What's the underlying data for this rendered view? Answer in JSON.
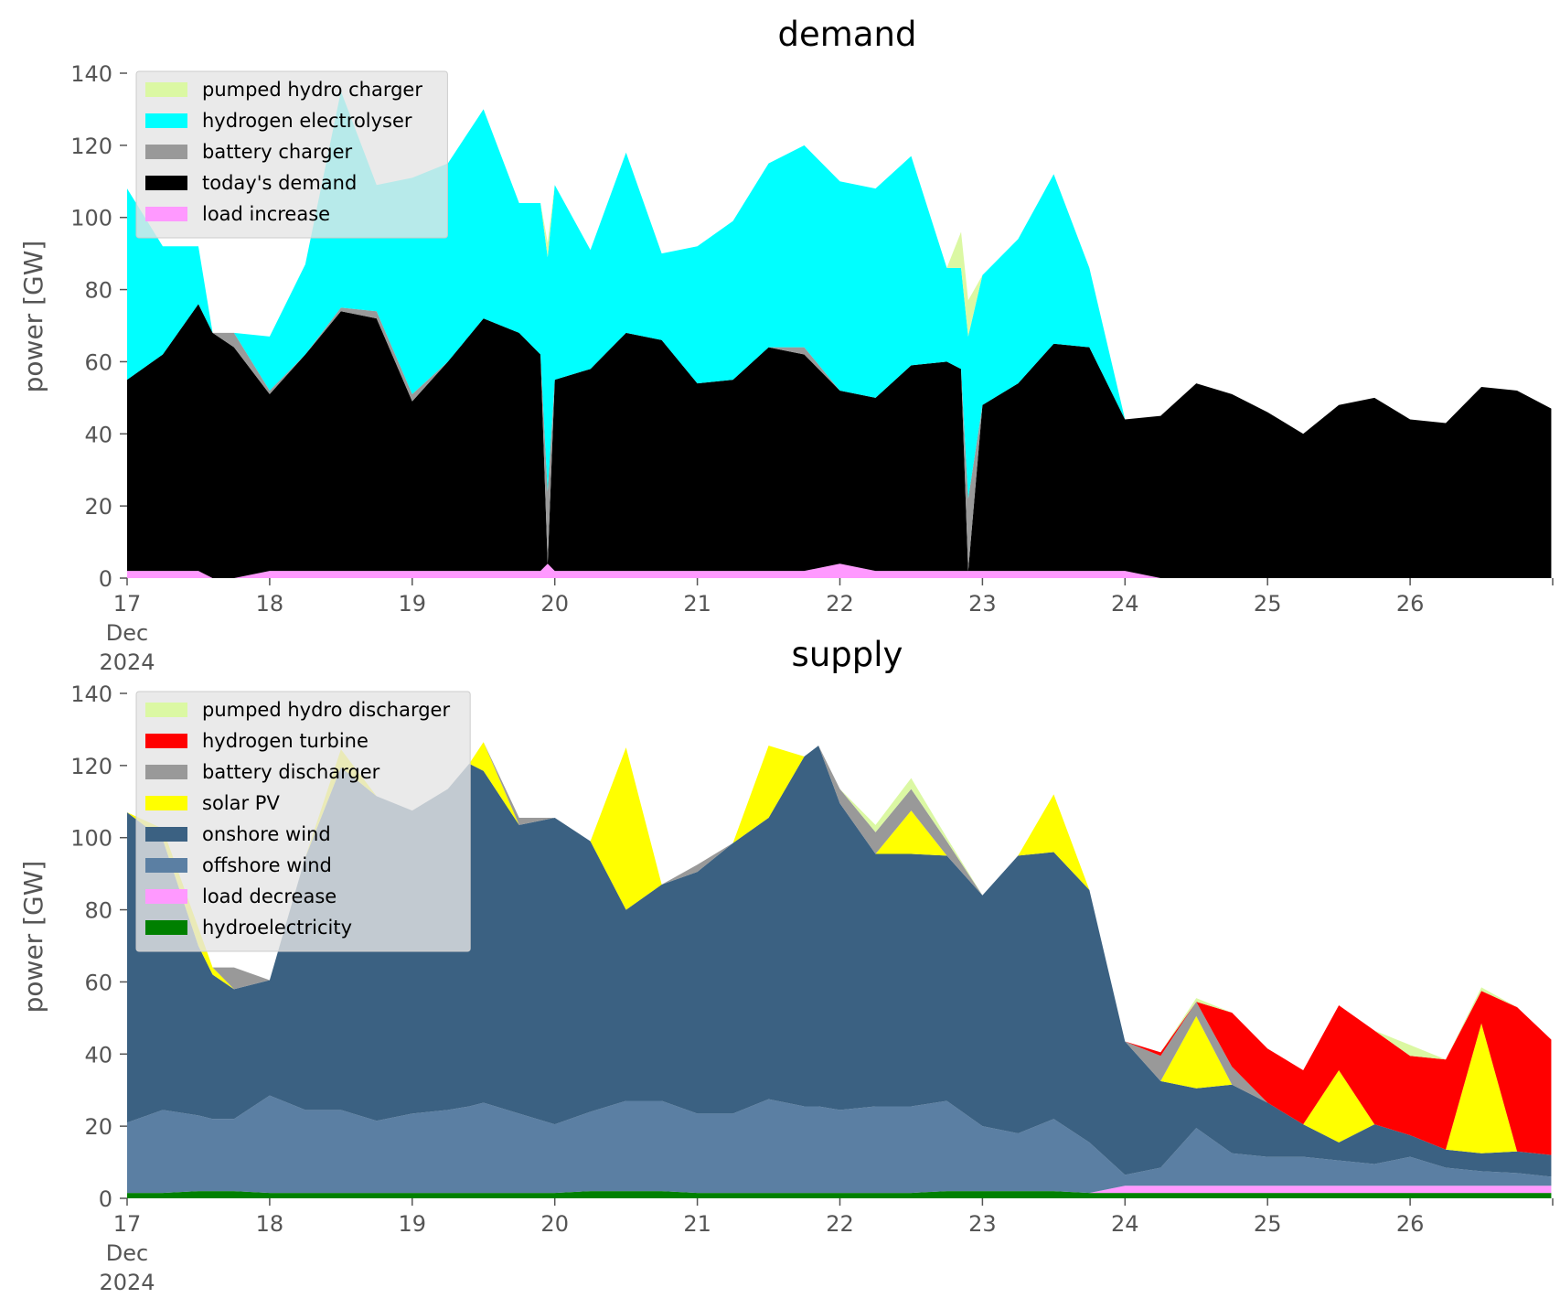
{
  "chart_data": [
    {
      "type": "area",
      "stacked": true,
      "title": "demand",
      "ylabel": "power [GW]",
      "xlabel": "",
      "ylim": [
        0,
        140
      ],
      "yticks": [
        0,
        20,
        40,
        60,
        80,
        100,
        120,
        140
      ],
      "xlim_days": [
        17,
        27
      ],
      "xticks": [
        {
          "day": 17,
          "labels": [
            "17",
            "Dec",
            "2024"
          ]
        },
        {
          "day": 18,
          "labels": [
            "18"
          ]
        },
        {
          "day": 19,
          "labels": [
            "19"
          ]
        },
        {
          "day": 20,
          "labels": [
            "20"
          ]
        },
        {
          "day": 21,
          "labels": [
            "21"
          ]
        },
        {
          "day": 22,
          "labels": [
            "22"
          ]
        },
        {
          "day": 23,
          "labels": [
            "23"
          ]
        },
        {
          "day": 24,
          "labels": [
            "24"
          ]
        },
        {
          "day": 25,
          "labels": [
            "25"
          ]
        },
        {
          "day": 26,
          "labels": [
            "26"
          ]
        }
      ],
      "grid": false,
      "legend_position": "top-left",
      "legend": [
        "pumped hydro charger",
        "hydrogen electrolyser",
        "battery charger",
        "today's demand",
        "load increase"
      ],
      "x_day": [
        17.0,
        17.25,
        17.5,
        17.6,
        17.75,
        18.0,
        18.25,
        18.5,
        18.75,
        19.0,
        19.25,
        19.5,
        19.75,
        19.9,
        19.95,
        20.0,
        20.25,
        20.5,
        20.75,
        21.0,
        21.25,
        21.5,
        21.75,
        22.0,
        22.25,
        22.5,
        22.75,
        22.85,
        22.9,
        23.0,
        23.25,
        23.5,
        23.75,
        24.0,
        24.25,
        24.5,
        24.75,
        25.0,
        25.25,
        25.5,
        25.75,
        26.0,
        26.25,
        26.5,
        26.75,
        26.99
      ],
      "series": [
        {
          "name": "load increase",
          "color": "#ff99ff",
          "values": [
            2,
            2,
            2,
            0,
            0,
            2,
            2,
            2,
            2,
            2,
            2,
            2,
            2,
            2,
            4,
            2,
            2,
            2,
            2,
            2,
            2,
            2,
            2,
            4,
            2,
            2,
            2,
            2,
            2,
            2,
            2,
            2,
            2,
            2,
            0,
            0,
            0,
            0,
            0,
            0,
            0,
            0,
            0,
            0,
            0,
            0
          ]
        },
        {
          "name": "today's demand",
          "color": "#000000",
          "values": [
            53,
            60,
            74,
            68,
            64,
            49,
            60,
            72,
            70,
            47,
            58,
            70,
            66,
            60,
            0,
            53,
            56,
            66,
            64,
            52,
            53,
            62,
            60,
            48,
            48,
            57,
            58,
            56,
            0,
            46,
            52,
            63,
            62,
            42,
            45,
            54,
            51,
            46,
            40,
            48,
            50,
            44,
            43,
            53,
            52,
            47
          ]
        },
        {
          "name": "battery charger",
          "color": "#999999",
          "values": [
            0,
            0,
            0,
            0,
            4,
            1,
            0,
            1,
            2,
            2,
            0,
            0,
            0,
            0,
            20,
            0,
            0,
            0,
            0,
            0,
            0,
            0,
            2,
            0,
            0,
            0,
            0,
            0,
            20,
            0,
            0,
            0,
            0,
            0,
            0,
            0,
            0,
            0,
            0,
            0,
            0,
            0,
            0,
            0,
            0,
            0
          ]
        },
        {
          "name": "hydrogen electrolyser",
          "color": "#00ffff",
          "values": [
            53,
            30,
            16,
            0,
            0,
            15,
            25,
            60,
            35,
            60,
            55,
            58,
            36,
            42,
            65,
            54,
            33,
            50,
            24,
            38,
            44,
            51,
            56,
            58,
            58,
            58,
            26,
            28,
            45,
            36,
            40,
            47,
            22,
            0,
            0,
            0,
            0,
            0,
            0,
            0,
            0,
            0,
            0,
            0,
            0,
            0
          ]
        },
        {
          "name": "pumped hydro charger",
          "color": "#dbf8a3",
          "values": [
            0,
            0,
            0,
            0,
            0,
            0,
            0,
            0,
            0,
            0,
            0,
            0,
            0,
            0,
            4,
            0,
            0,
            0,
            0,
            0,
            0,
            0,
            0,
            0,
            0,
            0,
            0,
            10,
            10,
            0,
            0,
            0,
            0,
            0,
            0,
            0,
            0,
            0,
            0,
            0,
            0,
            0,
            0,
            0,
            0,
            0
          ]
        }
      ]
    },
    {
      "type": "area",
      "stacked": true,
      "title": "supply",
      "ylabel": "power [GW]",
      "xlabel": "",
      "ylim": [
        0,
        140
      ],
      "yticks": [
        0,
        20,
        40,
        60,
        80,
        100,
        120,
        140
      ],
      "xlim_days": [
        17,
        27
      ],
      "xticks": [
        {
          "day": 17,
          "labels": [
            "17",
            "Dec",
            "2024"
          ]
        },
        {
          "day": 18,
          "labels": [
            "18"
          ]
        },
        {
          "day": 19,
          "labels": [
            "19"
          ]
        },
        {
          "day": 20,
          "labels": [
            "20"
          ]
        },
        {
          "day": 21,
          "labels": [
            "21"
          ]
        },
        {
          "day": 22,
          "labels": [
            "22"
          ]
        },
        {
          "day": 23,
          "labels": [
            "23"
          ]
        },
        {
          "day": 24,
          "labels": [
            "24"
          ]
        },
        {
          "day": 25,
          "labels": [
            "25"
          ]
        },
        {
          "day": 26,
          "labels": [
            "26"
          ]
        }
      ],
      "grid": false,
      "legend_position": "top-left",
      "legend": [
        "pumped hydro discharger",
        "hydrogen turbine",
        "battery discharger",
        "solar PV",
        "onshore wind",
        "offshore wind",
        "load decrease",
        "hydroelectricity"
      ],
      "x_day": [
        17.0,
        17.25,
        17.5,
        17.6,
        17.75,
        18.0,
        18.25,
        18.5,
        18.75,
        19.0,
        19.25,
        19.4,
        19.5,
        19.75,
        20.0,
        20.25,
        20.5,
        20.75,
        21.0,
        21.25,
        21.5,
        21.75,
        21.85,
        22.0,
        22.25,
        22.5,
        22.75,
        23.0,
        23.25,
        23.5,
        23.75,
        24.0,
        24.25,
        24.5,
        24.75,
        25.0,
        25.25,
        25.5,
        25.75,
        26.0,
        26.25,
        26.5,
        26.75,
        26.99
      ],
      "series": [
        {
          "name": "hydroelectricity",
          "color": "#008000",
          "values": [
            1.5,
            1.5,
            2,
            2,
            2,
            1.5,
            1.5,
            1.5,
            1.5,
            1.5,
            1.5,
            1.5,
            1.5,
            1.5,
            1.5,
            2,
            2,
            2,
            1.5,
            1.5,
            1.5,
            1.5,
            1.5,
            1.5,
            1.5,
            1.5,
            2,
            2,
            2,
            2,
            1.5,
            1.5,
            1.5,
            1.5,
            1.5,
            1.5,
            1.5,
            1.5,
            1.5,
            1.5,
            1.5,
            1.5,
            1.5,
            1.5
          ]
        },
        {
          "name": "load decrease",
          "color": "#ff99ff",
          "values": [
            0,
            0,
            0,
            0,
            0,
            0,
            0,
            0,
            0,
            0,
            0,
            0,
            0,
            0,
            0,
            0,
            0,
            0,
            0,
            0,
            0,
            0,
            0,
            0,
            0,
            0,
            0,
            0,
            0,
            0,
            0,
            2,
            2,
            2,
            2,
            2,
            2,
            2,
            2,
            2,
            2,
            2,
            2,
            2
          ]
        },
        {
          "name": "offshore wind",
          "color": "#5b7fa3",
          "values": [
            19.5,
            23,
            21,
            20,
            20,
            27,
            23,
            23,
            20,
            22,
            23,
            24,
            25,
            22,
            19,
            22,
            25,
            25,
            22,
            22,
            26,
            24,
            24,
            23,
            24,
            24,
            25,
            18,
            16,
            20,
            14,
            3,
            5,
            16,
            9,
            8,
            8,
            7,
            6,
            8,
            5,
            4,
            3.5,
            2.5
          ]
        },
        {
          "name": "onshore wind",
          "color": "#3b6182",
          "values": [
            86,
            75,
            47,
            40,
            36,
            32,
            70,
            95,
            90,
            84,
            89,
            95,
            92,
            80,
            85,
            75,
            53,
            60,
            67,
            75,
            78,
            97,
            100,
            85,
            70,
            70,
            68,
            64,
            77,
            74,
            70,
            37,
            24,
            11,
            19,
            15,
            9,
            5,
            11,
            6,
            5,
            5,
            6,
            6
          ]
        },
        {
          "name": "solar PV",
          "color": "#ffff00",
          "values": [
            0,
            3,
            5,
            2,
            0,
            0,
            0,
            5,
            0,
            0,
            0,
            0,
            8,
            0,
            0,
            0,
            45,
            0,
            0,
            0,
            20,
            0,
            0,
            0,
            0,
            12,
            0,
            0,
            0,
            16,
            0,
            0,
            0,
            20,
            0,
            0,
            0,
            20,
            0,
            0,
            0,
            36,
            0,
            0
          ]
        },
        {
          "name": "battery discharger",
          "color": "#999999",
          "values": [
            0,
            0,
            0,
            0,
            6,
            0,
            0,
            0,
            0,
            0,
            0,
            0,
            0,
            2,
            0,
            0,
            0,
            0,
            2,
            0,
            0,
            0,
            0,
            4,
            6,
            6,
            4,
            0,
            0,
            0,
            0,
            0,
            7,
            4,
            5,
            0,
            0,
            0,
            0,
            0,
            0,
            0,
            0,
            0
          ]
        },
        {
          "name": "hydrogen turbine",
          "color": "#ff0000",
          "values": [
            0,
            0,
            0,
            0,
            0,
            0,
            0,
            0,
            0,
            0,
            0,
            0,
            0,
            0,
            0,
            0,
            0,
            0,
            0,
            0,
            0,
            0,
            0,
            0,
            0,
            0,
            0,
            0,
            0,
            0,
            0,
            0,
            1,
            0,
            15,
            15,
            15,
            18,
            26,
            22,
            25,
            9,
            40,
            32
          ]
        },
        {
          "name": "pumped hydro discharger",
          "color": "#dbf8a3",
          "values": [
            0,
            0,
            0,
            0,
            0,
            0,
            0,
            0,
            0,
            0,
            0,
            0,
            0,
            0,
            0,
            0,
            0,
            0,
            0,
            0,
            0,
            0,
            0,
            0,
            2,
            3,
            1,
            0,
            0,
            0,
            0,
            0,
            0,
            1,
            0,
            0,
            0,
            0,
            0,
            3,
            0,
            1,
            0,
            0
          ]
        }
      ]
    }
  ]
}
